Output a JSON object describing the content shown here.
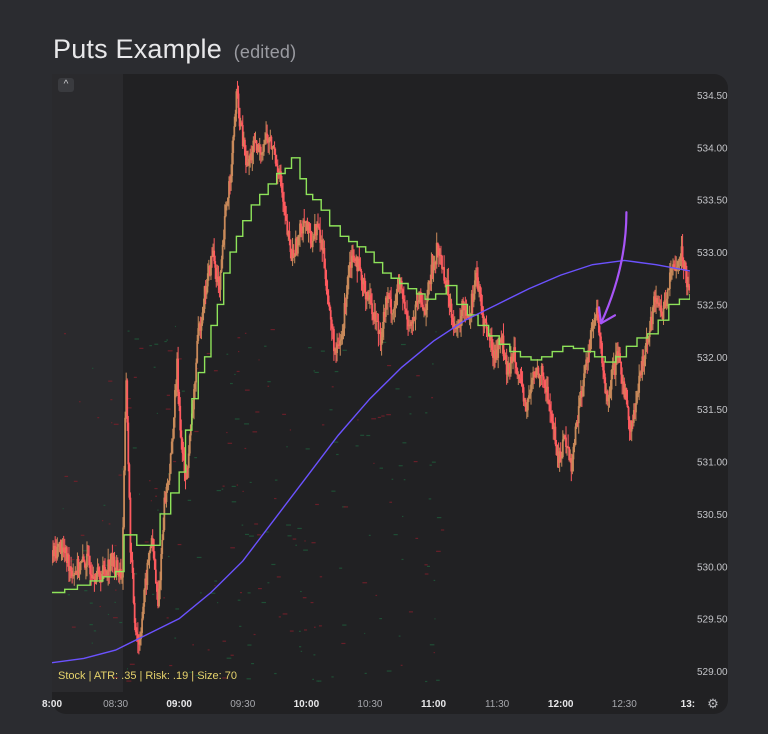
{
  "title": {
    "main": "Puts Example",
    "edited": "(edited)"
  },
  "toolbar": {
    "collapse_glyph": "^"
  },
  "status_line": "Stock | ATR: .35 | Risk: .19 | Size: 70",
  "colors": {
    "up": "#c98a5a",
    "down": "#ff5a5f",
    "green_line": "#8ee35a",
    "blue_line": "#6b52ff",
    "arrow": "#a855f7",
    "status_text": "#e6d36b"
  },
  "chart_data": {
    "type": "candlestick",
    "ylim": [
      528.8,
      534.7
    ],
    "y_ticks": [
      "534.50",
      "534.00",
      "533.50",
      "533.00",
      "532.50",
      "532.00",
      "531.50",
      "531.00",
      "530.50",
      "530.00",
      "529.50",
      "529.00"
    ],
    "y_tick_values": [
      534.5,
      534.0,
      533.5,
      533.0,
      532.5,
      532.0,
      531.5,
      531.0,
      530.5,
      530.0,
      529.5,
      529.0
    ],
    "x_range": [
      480,
      781
    ],
    "x_ticks": [
      {
        "label": "8:00",
        "t": 480,
        "bold": true
      },
      {
        "label": "08:30",
        "t": 510,
        "bold": false
      },
      {
        "label": "09:00",
        "t": 540,
        "bold": true
      },
      {
        "label": "09:30",
        "t": 570,
        "bold": false
      },
      {
        "label": "10:00",
        "t": 600,
        "bold": true
      },
      {
        "label": "10:30",
        "t": 630,
        "bold": false
      },
      {
        "label": "11:00",
        "t": 660,
        "bold": true
      },
      {
        "label": "11:30",
        "t": 690,
        "bold": false
      },
      {
        "label": "12:00",
        "t": 720,
        "bold": true
      },
      {
        "label": "12:30",
        "t": 750,
        "bold": false
      },
      {
        "label": "13:",
        "t": 780,
        "bold": true
      }
    ],
    "price_path": [
      [
        480,
        530.1
      ],
      [
        484,
        530.2
      ],
      [
        490,
        529.95
      ],
      [
        496,
        530.05
      ],
      [
        502,
        529.9
      ],
      [
        508,
        530.05
      ],
      [
        513,
        529.92
      ],
      [
        515,
        531.8
      ],
      [
        517,
        530.2
      ],
      [
        519,
        529.5
      ],
      [
        521,
        529.25
      ],
      [
        524,
        529.8
      ],
      [
        527,
        530.3
      ],
      [
        530,
        529.6
      ],
      [
        533,
        530.6
      ],
      [
        536,
        531.0
      ],
      [
        539,
        531.9
      ],
      [
        541,
        531.2
      ],
      [
        543,
        530.8
      ],
      [
        546,
        531.4
      ],
      [
        549,
        532.2
      ],
      [
        552,
        532.6
      ],
      [
        556,
        533.0
      ],
      [
        559,
        532.6
      ],
      [
        562,
        533.4
      ],
      [
        565,
        533.9
      ],
      [
        567,
        534.5
      ],
      [
        569,
        534.2
      ],
      [
        572,
        533.8
      ],
      [
        575,
        534.0
      ],
      [
        578,
        533.95
      ],
      [
        581,
        534.1
      ],
      [
        584,
        534.0
      ],
      [
        587,
        533.8
      ],
      [
        590,
        533.3
      ],
      [
        593,
        532.95
      ],
      [
        596,
        533.1
      ],
      [
        599,
        533.35
      ],
      [
        602,
        533.1
      ],
      [
        605,
        533.25
      ],
      [
        608,
        533.0
      ],
      [
        611,
        532.4
      ],
      [
        614,
        532.0
      ],
      [
        617,
        532.2
      ],
      [
        620,
        532.9
      ],
      [
        623,
        533.0
      ],
      [
        626,
        532.7
      ],
      [
        629,
        532.6
      ],
      [
        632,
        532.4
      ],
      [
        635,
        532.2
      ],
      [
        638,
        532.55
      ],
      [
        641,
        532.45
      ],
      [
        644,
        532.7
      ],
      [
        647,
        532.4
      ],
      [
        650,
        532.3
      ],
      [
        653,
        532.55
      ],
      [
        656,
        532.45
      ],
      [
        659,
        532.8
      ],
      [
        662,
        533.05
      ],
      [
        665,
        532.8
      ],
      [
        668,
        532.5
      ],
      [
        671,
        532.2
      ],
      [
        674,
        532.5
      ],
      [
        677,
        532.4
      ],
      [
        680,
        532.8
      ],
      [
        683,
        532.4
      ],
      [
        686,
        532.2
      ],
      [
        689,
        532.0
      ],
      [
        692,
        532.2
      ],
      [
        695,
        531.8
      ],
      [
        698,
        532.1
      ],
      [
        701,
        531.7
      ],
      [
        704,
        531.5
      ],
      [
        707,
        531.8
      ],
      [
        710,
        531.9
      ],
      [
        713,
        531.7
      ],
      [
        716,
        531.4
      ],
      [
        719,
        531.0
      ],
      [
        722,
        531.25
      ],
      [
        725,
        530.95
      ],
      [
        728,
        531.45
      ],
      [
        731,
        531.8
      ],
      [
        734,
        532.2
      ],
      [
        737,
        532.4
      ],
      [
        740,
        531.9
      ],
      [
        742,
        531.5
      ],
      [
        744,
        531.8
      ],
      [
        747,
        532.0
      ],
      [
        750,
        531.7
      ],
      [
        753,
        531.3
      ],
      [
        756,
        531.6
      ],
      [
        759,
        532.0
      ],
      [
        762,
        532.3
      ],
      [
        765,
        532.6
      ],
      [
        768,
        532.4
      ],
      [
        771,
        532.7
      ],
      [
        774,
        532.9
      ],
      [
        777,
        533.0
      ],
      [
        780,
        532.7
      ]
    ],
    "green_steps": [
      [
        480,
        529.75
      ],
      [
        486,
        529.78
      ],
      [
        492,
        529.82
      ],
      [
        498,
        529.86
      ],
      [
        504,
        529.9
      ],
      [
        510,
        529.95
      ],
      [
        514,
        530.3
      ],
      [
        520,
        530.2
      ],
      [
        526,
        530.2
      ],
      [
        531,
        530.5
      ],
      [
        536,
        530.7
      ],
      [
        540,
        530.9
      ],
      [
        543,
        531.3
      ],
      [
        546,
        531.6
      ],
      [
        549,
        531.85
      ],
      [
        552,
        532.0
      ],
      [
        555,
        532.3
      ],
      [
        558,
        532.5
      ],
      [
        561,
        532.8
      ],
      [
        564,
        533.0
      ],
      [
        567,
        533.15
      ],
      [
        570,
        533.3
      ],
      [
        574,
        533.45
      ],
      [
        578,
        533.55
      ],
      [
        582,
        533.65
      ],
      [
        586,
        533.75
      ],
      [
        590,
        533.8
      ],
      [
        593,
        533.9
      ],
      [
        597,
        533.7
      ],
      [
        600,
        533.55
      ],
      [
        603,
        533.5
      ],
      [
        607,
        533.4
      ],
      [
        611,
        533.25
      ],
      [
        616,
        533.15
      ],
      [
        620,
        533.1
      ],
      [
        624,
        533.05
      ],
      [
        628,
        533.0
      ],
      [
        632,
        532.9
      ],
      [
        636,
        532.8
      ],
      [
        640,
        532.75
      ],
      [
        644,
        532.7
      ],
      [
        648,
        532.65
      ],
      [
        652,
        532.6
      ],
      [
        656,
        532.55
      ],
      [
        661,
        532.6
      ],
      [
        666,
        532.68
      ],
      [
        671,
        532.5
      ],
      [
        676,
        532.4
      ],
      [
        681,
        532.3
      ],
      [
        686,
        532.2
      ],
      [
        691,
        532.12
      ],
      [
        696,
        532.05
      ],
      [
        701,
        532.0
      ],
      [
        706,
        531.97
      ],
      [
        711,
        532.0
      ],
      [
        716,
        532.05
      ],
      [
        721,
        532.1
      ],
      [
        726,
        532.08
      ],
      [
        731,
        532.05
      ],
      [
        736,
        532.0
      ],
      [
        741,
        531.95
      ],
      [
        746,
        532.0
      ],
      [
        751,
        532.1
      ],
      [
        756,
        532.18
      ],
      [
        761,
        532.22
      ],
      [
        766,
        532.35
      ],
      [
        771,
        532.5
      ],
      [
        776,
        532.55
      ],
      [
        781,
        532.6
      ]
    ],
    "blue_line": [
      [
        480,
        529.08
      ],
      [
        495,
        529.12
      ],
      [
        510,
        529.2
      ],
      [
        525,
        529.35
      ],
      [
        540,
        529.5
      ],
      [
        555,
        529.75
      ],
      [
        570,
        530.05
      ],
      [
        585,
        530.45
      ],
      [
        600,
        530.85
      ],
      [
        615,
        531.25
      ],
      [
        630,
        531.6
      ],
      [
        645,
        531.9
      ],
      [
        660,
        532.15
      ],
      [
        675,
        532.35
      ],
      [
        690,
        532.5
      ],
      [
        705,
        532.65
      ],
      [
        720,
        532.78
      ],
      [
        735,
        532.88
      ],
      [
        750,
        532.92
      ],
      [
        765,
        532.88
      ],
      [
        781,
        532.82
      ]
    ],
    "annotations": [
      {
        "type": "arrow",
        "from": [
          751,
          533.38
        ],
        "to": [
          739,
          532.32
        ],
        "color": "#a855f7"
      }
    ]
  }
}
